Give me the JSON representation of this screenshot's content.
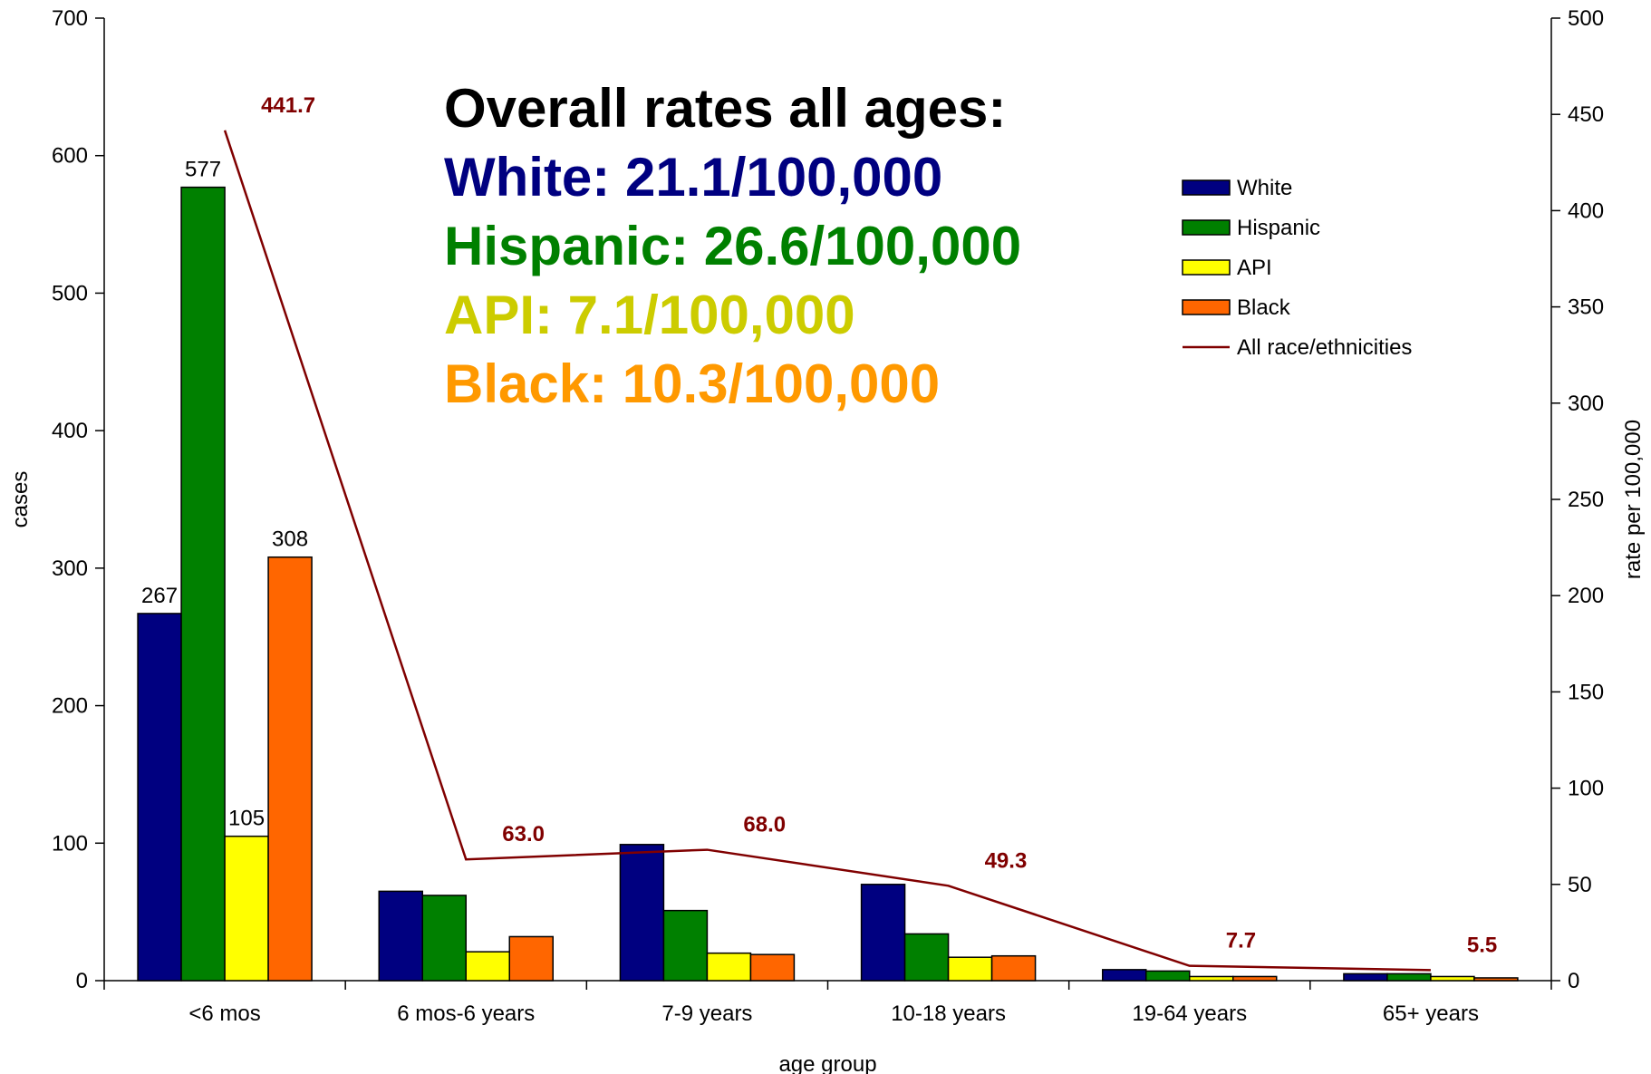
{
  "chart_data": {
    "type": "bar",
    "categories": [
      "<6 mos",
      "6 mos-6 years",
      "7-9 years",
      "10-18 years",
      "19-64 years",
      "65+ years"
    ],
    "series": [
      {
        "name": "White",
        "color": "#000080",
        "values": [
          267,
          65,
          99,
          70,
          8,
          5
        ]
      },
      {
        "name": "Hispanic",
        "color": "#008000",
        "values": [
          577,
          62,
          51,
          34,
          7,
          5
        ]
      },
      {
        "name": "API",
        "color": "#ffff00",
        "values": [
          105,
          21,
          20,
          17,
          3,
          3
        ]
      },
      {
        "name": "Black",
        "color": "#ff6600",
        "values": [
          308,
          32,
          19,
          18,
          3,
          2
        ]
      }
    ],
    "line_series": {
      "name": "All race/ethnicities",
      "color": "#800000",
      "values": [
        441.7,
        63.0,
        68.0,
        49.3,
        7.7,
        5.5
      ],
      "labels": [
        "441.7",
        "63.0",
        "68.0",
        "49.3",
        "7.7",
        "5.5"
      ]
    },
    "bar_labels": {
      "White": [
        "267",
        "",
        "",
        "",
        "",
        ""
      ],
      "Hispanic": [
        "577",
        "",
        "",
        "",
        "",
        ""
      ],
      "API": [
        "105",
        "",
        "",
        "",
        "",
        ""
      ],
      "Black": [
        "308",
        "",
        "",
        "",
        "",
        ""
      ]
    },
    "xlabel": "age group",
    "ylabel": "cases",
    "y2label": "rate per 100,000",
    "ylim": [
      0,
      700
    ],
    "y2lim": [
      0,
      500
    ],
    "yticks": [
      "0",
      "100",
      "200",
      "300",
      "400",
      "500",
      "600",
      "700"
    ],
    "y2ticks": [
      "0",
      "50",
      "100",
      "150",
      "200",
      "250",
      "300",
      "350",
      "400",
      "450",
      "500"
    ],
    "legend_position": "right",
    "annotations": [
      {
        "text": "Overall rates all ages:",
        "color": "#000000"
      },
      {
        "text": "White: 21.1/100,000",
        "color": "#000080"
      },
      {
        "text": "Hispanic: 26.6/100,000",
        "color": "#008000"
      },
      {
        "text": "API: 7.1/100,000",
        "color": "#cccc00"
      },
      {
        "text": "Black: 10.3/100,000",
        "color": "#ff9900"
      }
    ]
  }
}
